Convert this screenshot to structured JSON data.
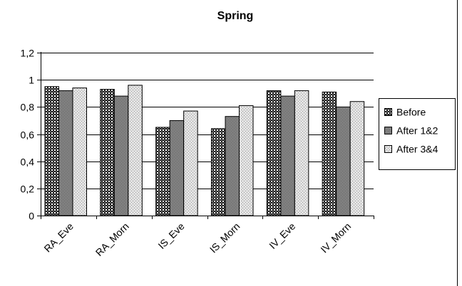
{
  "chart_data": {
    "type": "bar",
    "title": "Spring",
    "xlabel": "",
    "ylabel": "",
    "categories": [
      "RA_Eve",
      "RA_Morn",
      "IS_Eve",
      "IS_Morn",
      "IV_Eve",
      "IV_Morn"
    ],
    "series": [
      {
        "name": "Before",
        "values": [
          0.95,
          0.93,
          0.65,
          0.64,
          0.92,
          0.91
        ],
        "pattern": "dense-dark-checker"
      },
      {
        "name": "After 1&2",
        "values": [
          0.92,
          0.88,
          0.7,
          0.73,
          0.88,
          0.8
        ],
        "pattern": "solid-gray"
      },
      {
        "name": "After 3&4",
        "values": [
          0.94,
          0.96,
          0.77,
          0.81,
          0.92,
          0.84
        ],
        "pattern": "light-dotted"
      }
    ],
    "ylim": [
      0,
      1.2
    ],
    "yticks": [
      "0",
      "0,2",
      "0,4",
      "0,6",
      "0,8",
      "1",
      "1,2"
    ],
    "ytick_values": [
      0,
      0.2,
      0.4,
      0.6,
      0.8,
      1.0,
      1.2
    ],
    "grid": true,
    "legend_position": "right",
    "colors": {
      "series_1": "#2b2b2b",
      "series_2": "#7f7f7f",
      "series_3": "#d9d9d9",
      "grid": "#000000",
      "frame": "#000000"
    }
  }
}
